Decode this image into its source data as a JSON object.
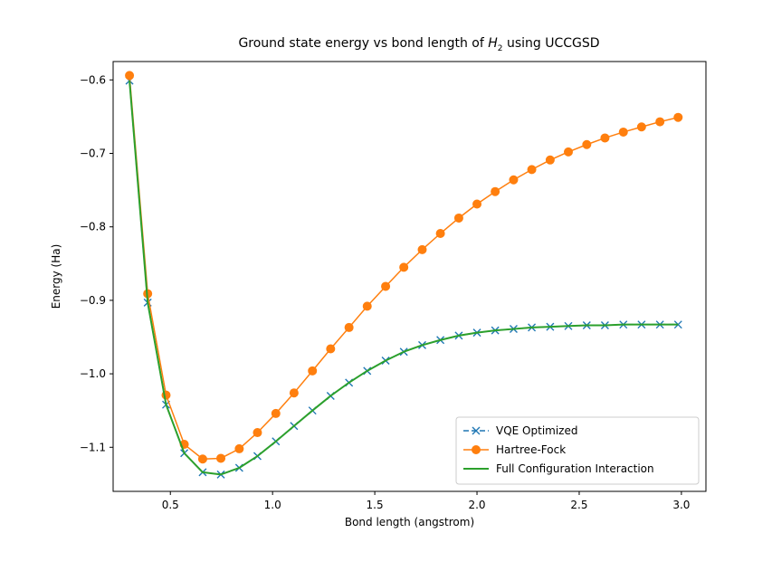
{
  "chart_data": {
    "type": "line",
    "title_prefix": "Ground state energy vs bond length of ",
    "title_var": "H",
    "title_sub": "2",
    "title_suffix": " using UCCGSD",
    "xlabel": "Bond length (angstrom)",
    "ylabel": "Energy (Ha)",
    "xlim": [
      0.22,
      3.12
    ],
    "ylim": [
      -1.16,
      -0.575
    ],
    "xticks": [
      0.5,
      1.0,
      1.5,
      2.0,
      2.5,
      3.0
    ],
    "xtick_labels": [
      "0.5",
      "1.0",
      "1.5",
      "2.0",
      "2.5",
      "3.0"
    ],
    "yticks": [
      -0.6,
      -0.7,
      -0.8,
      -0.9,
      -1.0,
      -1.1
    ],
    "ytick_labels": [
      "−0.6",
      "−0.7",
      "−0.8",
      "−0.9",
      "−1.0",
      "−1.1"
    ],
    "grid": false,
    "legend_position": "bottom-right",
    "x": [
      0.3,
      0.389,
      0.479,
      0.568,
      0.658,
      0.747,
      0.837,
      0.926,
      1.016,
      1.105,
      1.195,
      1.284,
      1.374,
      1.463,
      1.553,
      1.642,
      1.732,
      1.821,
      1.911,
      2.0,
      2.089,
      2.179,
      2.268,
      2.358,
      2.447,
      2.537,
      2.626,
      2.716,
      2.805,
      2.895,
      2.984
    ],
    "series": [
      {
        "name": "VQE Optimized",
        "color": "#1f77b4",
        "marker": "x",
        "linestyle": "dashed",
        "values": [
          -0.601,
          -0.903,
          -1.042,
          -1.108,
          -1.134,
          -1.137,
          -1.128,
          -1.112,
          -1.092,
          -1.071,
          -1.05,
          -1.03,
          -1.012,
          -0.996,
          -0.982,
          -0.97,
          -0.961,
          -0.954,
          -0.948,
          -0.944,
          -0.941,
          -0.939,
          -0.937,
          -0.936,
          -0.935,
          -0.934,
          -0.934,
          -0.933,
          -0.933,
          -0.933,
          -0.933
        ]
      },
      {
        "name": "Hartree-Fock",
        "color": "#ff7f0e",
        "marker": "o",
        "linestyle": "solid",
        "values": [
          -0.594,
          -0.891,
          -1.029,
          -1.096,
          -1.116,
          -1.115,
          -1.102,
          -1.08,
          -1.054,
          -1.026,
          -0.996,
          -0.966,
          -0.937,
          -0.908,
          -0.881,
          -0.855,
          -0.831,
          -0.809,
          -0.788,
          -0.769,
          -0.752,
          -0.736,
          -0.722,
          -0.709,
          -0.698,
          -0.688,
          -0.679,
          -0.671,
          -0.664,
          -0.657,
          -0.651
        ]
      },
      {
        "name": "Full Configuration Interaction",
        "color": "#2ca02c",
        "marker": "none",
        "linestyle": "solid",
        "values": [
          -0.601,
          -0.903,
          -1.042,
          -1.108,
          -1.134,
          -1.137,
          -1.128,
          -1.112,
          -1.092,
          -1.071,
          -1.05,
          -1.03,
          -1.012,
          -0.996,
          -0.982,
          -0.97,
          -0.961,
          -0.954,
          -0.948,
          -0.944,
          -0.941,
          -0.939,
          -0.937,
          -0.936,
          -0.935,
          -0.934,
          -0.934,
          -0.933,
          -0.933,
          -0.933,
          -0.933
        ]
      }
    ]
  }
}
